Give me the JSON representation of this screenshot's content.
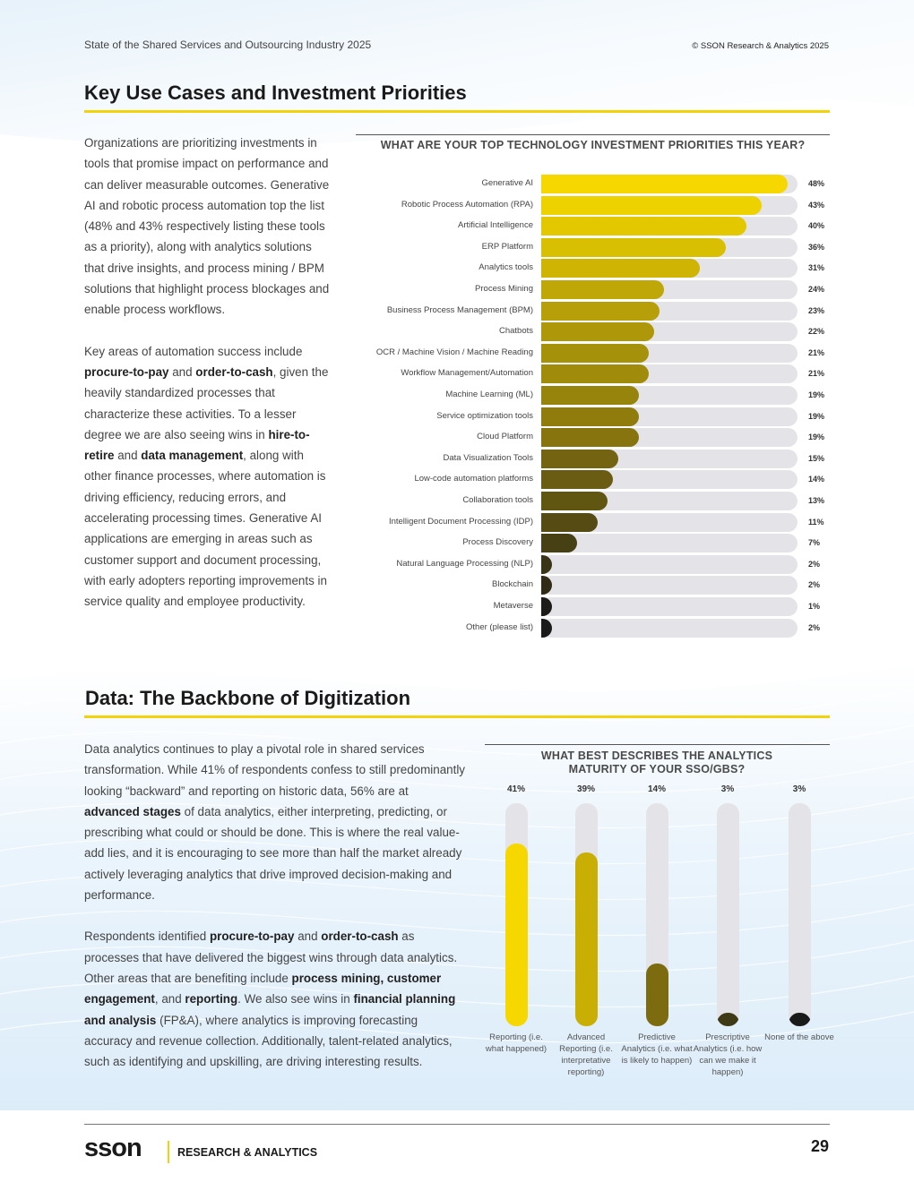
{
  "header": {
    "report_title": "State of the Shared Services and Outsourcing Industry 2025",
    "copyright": "© SSON Research & Analytics 2025"
  },
  "section1": {
    "title": "Key Use Cases and Investment Priorities",
    "para1": "Organizations are prioritizing investments in tools that promise impact on performance and can deliver measurable outcomes. Generative AI and robotic process automation top the list (48% and 43% respectively listing these tools as a priority), along with analytics solutions that drive insights, and process mining / BPM solutions that highlight process blockages and enable process workflows.",
    "p2": {
      "t1": "Key areas of automation success include ",
      "b1": "procure-to-pay",
      "t2": " and ",
      "b2": "order-to-cash",
      "t3": ", given the heavily standardized processes that characterize these activities. To a lesser degree we are also seeing wins in ",
      "b3": "hire-to-retire",
      "t4": " and ",
      "b4": "data management",
      "t5": ", along with other finance processes, where automation is driving efficiency, reducing errors, and accelerating processing times. Generative AI applications are emerging in areas such as customer support and document processing, with early adopters reporting improvements in service quality and employee productivity."
    }
  },
  "section2": {
    "title": "Data: The Backbone of Digitization",
    "p1": {
      "t1": "Data analytics continues to play a pivotal role in shared services transformation. While 41% of respondents confess to still predominantly looking “backward” and reporting on historic data, 56% are at ",
      "b1": "advanced stages",
      "t2": " of data analytics, either interpreting, predicting, or prescribing what could or should be done. This is where the real value-add lies, and it is encouraging to see more than half the market already actively leveraging analytics that drive improved decision-making and performance."
    },
    "p2": {
      "t1": "Respondents identified ",
      "b1": "procure-to-pay",
      "t2": " and ",
      "b2": "order-to-cash",
      "t3": " as processes that have delivered the biggest wins through data analytics. Other areas that are benefiting include ",
      "b3": "process mining, customer engagement",
      "t4": ", and ",
      "b4": "reporting",
      "t5": ". We also see wins in ",
      "b5": "financial planning and analysis",
      "t6": " (FP&A), where analytics is improving forecasting accuracy and revenue collection. Additionally, talent-related analytics, such as identifying and upskilling, are driving interesting results."
    }
  },
  "chart_data": [
    {
      "type": "bar",
      "orientation": "horizontal",
      "title": "WHAT ARE YOUR TOP TECHNOLOGY INVESTMENT PRIORITIES THIS YEAR?",
      "categories": [
        "Generative AI",
        "Robotic Process Automation (RPA)",
        "Artificial Intelligence",
        "ERP Platform",
        "Analytics tools",
        "Process Mining",
        "Business Process Management (BPM)",
        "Chatbots",
        "OCR / Machine Vision / Machine Reading",
        "Workflow Management/Automation",
        "Machine Learning (ML)",
        "Service optimization tools",
        "Cloud Platform",
        "Data Visualization Tools",
        "Low-code automation platforms",
        "Collaboration tools",
        "Intelligent Document Processing (IDP)",
        "Process Discovery",
        "Natural Language Processing (NLP)",
        "Blockchain",
        "Metaverse",
        "Other (please list)"
      ],
      "values": [
        48,
        43,
        40,
        36,
        31,
        24,
        23,
        22,
        21,
        21,
        19,
        19,
        19,
        15,
        14,
        13,
        11,
        7,
        2,
        2,
        1,
        2
      ],
      "value_labels": [
        "48%",
        "43%",
        "40%",
        "36%",
        "31%",
        "24%",
        "23%",
        "22%",
        "21%",
        "21%",
        "19%",
        "19%",
        "19%",
        "15%",
        "14%",
        "13%",
        "11%",
        "7%",
        "2%",
        "2%",
        "1%",
        "2%"
      ],
      "xlim": [
        0,
        50
      ],
      "colors": [
        "#f6d800",
        "#eed200",
        "#e3c800",
        "#d9bf02",
        "#cfb404",
        "#bea707",
        "#b69f08",
        "#ae9809",
        "#a6910a",
        "#a08b0b",
        "#97840c",
        "#8f7c0d",
        "#87740e",
        "#746411",
        "#6a5c12",
        "#615512",
        "#564b13",
        "#484015",
        "#3a3416",
        "#302b17",
        "#1e1c18",
        "#1a1a1a"
      ]
    },
    {
      "type": "bar",
      "orientation": "vertical",
      "title": "WHAT BEST DESCRIBES THE ANALYTICS MATURITY OF YOUR SSO/GBS?",
      "categories": [
        "Reporting (i.e. what happened)",
        "Advanced Reporting (i.e. interpretative reporting)",
        "Predictive Analytics (i.e. what is likely to happen)",
        "Prescriptive Analytics (i.e. how can we make it happen)",
        "None of the above"
      ],
      "values": [
        41,
        39,
        14,
        3,
        3
      ],
      "value_labels": [
        "41%",
        "39%",
        "14%",
        "3%",
        "3%"
      ],
      "ylim": [
        0,
        50
      ],
      "colors": [
        "#f6d800",
        "#c9ae04",
        "#7d6c0f",
        "#403916",
        "#1a1a1a"
      ]
    }
  ],
  "footer": {
    "logo_word": "sson",
    "logo_tagline": "RESEARCH & ANALYTICS",
    "page_number": "29"
  }
}
